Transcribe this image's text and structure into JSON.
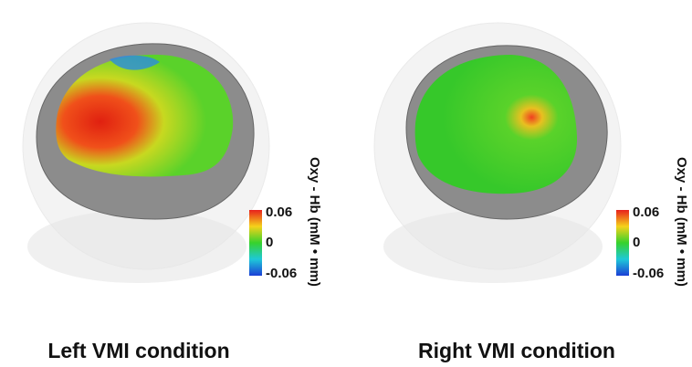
{
  "panels": [
    {
      "caption": "Left VMI condition",
      "colorbar": {
        "label": "Oxy - Hb (mM • mm)",
        "ticks": [
          0.06,
          0,
          -0.06
        ]
      }
    },
    {
      "caption": "Right VMI condition",
      "colorbar": {
        "label": "Oxy - Hb (mM • mm)",
        "ticks": [
          0.06,
          0,
          -0.06
        ]
      }
    }
  ]
}
